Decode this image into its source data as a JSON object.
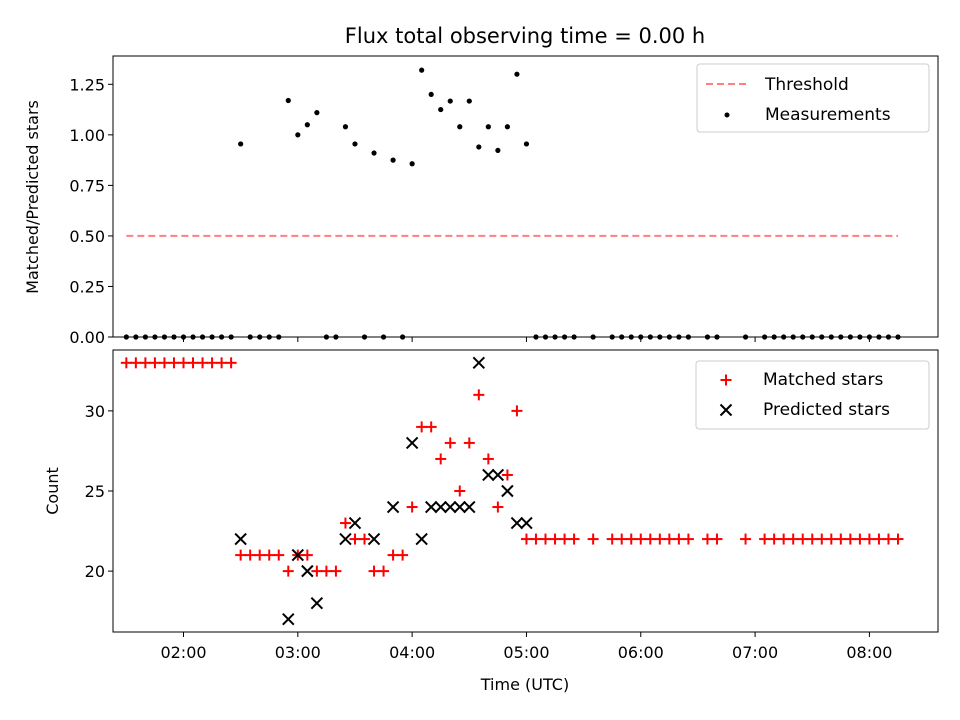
{
  "chart_data": [
    {
      "type": "scatter",
      "title": "Flux total observing time = 0.00 h",
      "xlabel": "",
      "ylabel": "Matched/Predicted stars",
      "xlim": [
        "01:23",
        "08:36"
      ],
      "ylim": [
        0,
        1.39
      ],
      "yticks": [
        "0.00",
        "0.25",
        "0.50",
        "0.75",
        "1.00",
        "1.25"
      ],
      "legend_position": "top-right",
      "series": [
        {
          "name": "Threshold",
          "kind": "dashed-line",
          "color": "#ff7f7f",
          "x": [
            "01:30",
            "08:15"
          ],
          "y": [
            0.5,
            0.5
          ]
        },
        {
          "name": "Measurements",
          "kind": "points",
          "color": "#000000",
          "points": [
            [
              "01:30",
              0
            ],
            [
              "01:35",
              0
            ],
            [
              "01:40",
              0
            ],
            [
              "01:45",
              0
            ],
            [
              "01:50",
              0
            ],
            [
              "01:55",
              0
            ],
            [
              "02:00",
              0
            ],
            [
              "02:05",
              0
            ],
            [
              "02:10",
              0
            ],
            [
              "02:15",
              0
            ],
            [
              "02:20",
              0
            ],
            [
              "02:25",
              0
            ],
            [
              "02:30",
              0.955
            ],
            [
              "02:35",
              0
            ],
            [
              "02:40",
              0
            ],
            [
              "02:45",
              0
            ],
            [
              "02:50",
              0
            ],
            [
              "02:55",
              1.17
            ],
            [
              "03:00",
              1.0
            ],
            [
              "03:05",
              1.05
            ],
            [
              "03:10",
              1.11
            ],
            [
              "03:15",
              0
            ],
            [
              "03:20",
              0
            ],
            [
              "03:25",
              1.04
            ],
            [
              "03:30",
              0.955
            ],
            [
              "03:35",
              0
            ],
            [
              "03:40",
              0.91
            ],
            [
              "03:45",
              0
            ],
            [
              "03:50",
              0.875
            ],
            [
              "03:55",
              0
            ],
            [
              "04:00",
              0.857
            ],
            [
              "04:05",
              1.32
            ],
            [
              "04:10",
              1.2
            ],
            [
              "04:15",
              1.125
            ],
            [
              "04:20",
              1.167
            ],
            [
              "04:25",
              1.04
            ],
            [
              "04:30",
              1.167
            ],
            [
              "04:35",
              0.94
            ],
            [
              "04:40",
              1.04
            ],
            [
              "04:45",
              0.923
            ],
            [
              "04:50",
              1.04
            ],
            [
              "04:55",
              1.3
            ],
            [
              "05:00",
              0.955
            ],
            [
              "05:05",
              0
            ],
            [
              "05:10",
              0
            ],
            [
              "05:15",
              0
            ],
            [
              "05:20",
              0
            ],
            [
              "05:25",
              0
            ],
            [
              "05:35",
              0
            ],
            [
              "05:45",
              0
            ],
            [
              "05:50",
              0
            ],
            [
              "05:55",
              0
            ],
            [
              "06:00",
              0
            ],
            [
              "06:05",
              0
            ],
            [
              "06:10",
              0
            ],
            [
              "06:15",
              0
            ],
            [
              "06:20",
              0
            ],
            [
              "06:25",
              0
            ],
            [
              "06:35",
              0
            ],
            [
              "06:40",
              0
            ],
            [
              "06:55",
              0
            ],
            [
              "07:05",
              0
            ],
            [
              "07:10",
              0
            ],
            [
              "07:15",
              0
            ],
            [
              "07:20",
              0
            ],
            [
              "07:25",
              0
            ],
            [
              "07:30",
              0
            ],
            [
              "07:35",
              0
            ],
            [
              "07:40",
              0
            ],
            [
              "07:45",
              0
            ],
            [
              "07:50",
              0
            ],
            [
              "07:55",
              0
            ],
            [
              "08:00",
              0
            ],
            [
              "08:05",
              0
            ],
            [
              "08:10",
              0
            ],
            [
              "08:15",
              0
            ]
          ]
        }
      ]
    },
    {
      "type": "scatter",
      "title": "",
      "xlabel": "Time (UTC)",
      "ylabel": "Count",
      "xlim": [
        "01:23",
        "08:36"
      ],
      "ylim": [
        16.2,
        33.8
      ],
      "xticks": [
        "02:00",
        "03:00",
        "04:00",
        "05:00",
        "06:00",
        "07:00",
        "08:00"
      ],
      "yticks": [
        "20",
        "25",
        "30"
      ],
      "legend_position": "top-right",
      "series": [
        {
          "name": "Matched stars",
          "kind": "plus",
          "color": "#ff0000",
          "points": [
            [
              "01:30",
              33
            ],
            [
              "01:35",
              33
            ],
            [
              "01:40",
              33
            ],
            [
              "01:45",
              33
            ],
            [
              "01:50",
              33
            ],
            [
              "01:55",
              33
            ],
            [
              "02:00",
              33
            ],
            [
              "02:05",
              33
            ],
            [
              "02:10",
              33
            ],
            [
              "02:15",
              33
            ],
            [
              "02:20",
              33
            ],
            [
              "02:25",
              33
            ],
            [
              "02:30",
              21
            ],
            [
              "02:35",
              21
            ],
            [
              "02:40",
              21
            ],
            [
              "02:45",
              21
            ],
            [
              "02:50",
              21
            ],
            [
              "02:55",
              20
            ],
            [
              "03:00",
              21
            ],
            [
              "03:05",
              21
            ],
            [
              "03:10",
              20
            ],
            [
              "03:15",
              20
            ],
            [
              "03:20",
              20
            ],
            [
              "03:25",
              23
            ],
            [
              "03:30",
              22
            ],
            [
              "03:35",
              22
            ],
            [
              "03:40",
              20
            ],
            [
              "03:45",
              20
            ],
            [
              "03:50",
              21
            ],
            [
              "03:55",
              21
            ],
            [
              "04:00",
              24
            ],
            [
              "04:05",
              29
            ],
            [
              "04:10",
              29
            ],
            [
              "04:15",
              27
            ],
            [
              "04:20",
              28
            ],
            [
              "04:25",
              25
            ],
            [
              "04:30",
              28
            ],
            [
              "04:35",
              31
            ],
            [
              "04:40",
              27
            ],
            [
              "04:45",
              24
            ],
            [
              "04:50",
              26
            ],
            [
              "04:55",
              30
            ],
            [
              "05:00",
              22
            ],
            [
              "05:05",
              22
            ],
            [
              "05:10",
              22
            ],
            [
              "05:15",
              22
            ],
            [
              "05:20",
              22
            ],
            [
              "05:25",
              22
            ],
            [
              "05:35",
              22
            ],
            [
              "05:45",
              22
            ],
            [
              "05:50",
              22
            ],
            [
              "05:55",
              22
            ],
            [
              "06:00",
              22
            ],
            [
              "06:05",
              22
            ],
            [
              "06:10",
              22
            ],
            [
              "06:15",
              22
            ],
            [
              "06:20",
              22
            ],
            [
              "06:25",
              22
            ],
            [
              "06:35",
              22
            ],
            [
              "06:40",
              22
            ],
            [
              "06:55",
              22
            ],
            [
              "07:05",
              22
            ],
            [
              "07:10",
              22
            ],
            [
              "07:15",
              22
            ],
            [
              "07:20",
              22
            ],
            [
              "07:25",
              22
            ],
            [
              "07:30",
              22
            ],
            [
              "07:35",
              22
            ],
            [
              "07:40",
              22
            ],
            [
              "07:45",
              22
            ],
            [
              "07:50",
              22
            ],
            [
              "07:55",
              22
            ],
            [
              "08:00",
              22
            ],
            [
              "08:05",
              22
            ],
            [
              "08:10",
              22
            ],
            [
              "08:15",
              22
            ]
          ]
        },
        {
          "name": "Predicted stars",
          "kind": "cross",
          "color": "#000000",
          "points": [
            [
              "02:30",
              22
            ],
            [
              "02:55",
              17
            ],
            [
              "03:00",
              21
            ],
            [
              "03:05",
              20
            ],
            [
              "03:10",
              18
            ],
            [
              "03:25",
              22
            ],
            [
              "03:30",
              23
            ],
            [
              "03:40",
              22
            ],
            [
              "03:50",
              24
            ],
            [
              "04:00",
              28
            ],
            [
              "04:05",
              22
            ],
            [
              "04:10",
              24
            ],
            [
              "04:15",
              24
            ],
            [
              "04:20",
              24
            ],
            [
              "04:25",
              24
            ],
            [
              "04:30",
              24
            ],
            [
              "04:35",
              33
            ],
            [
              "04:40",
              26
            ],
            [
              "04:45",
              26
            ],
            [
              "04:50",
              25
            ],
            [
              "04:55",
              23
            ],
            [
              "05:00",
              23
            ]
          ]
        }
      ]
    }
  ]
}
